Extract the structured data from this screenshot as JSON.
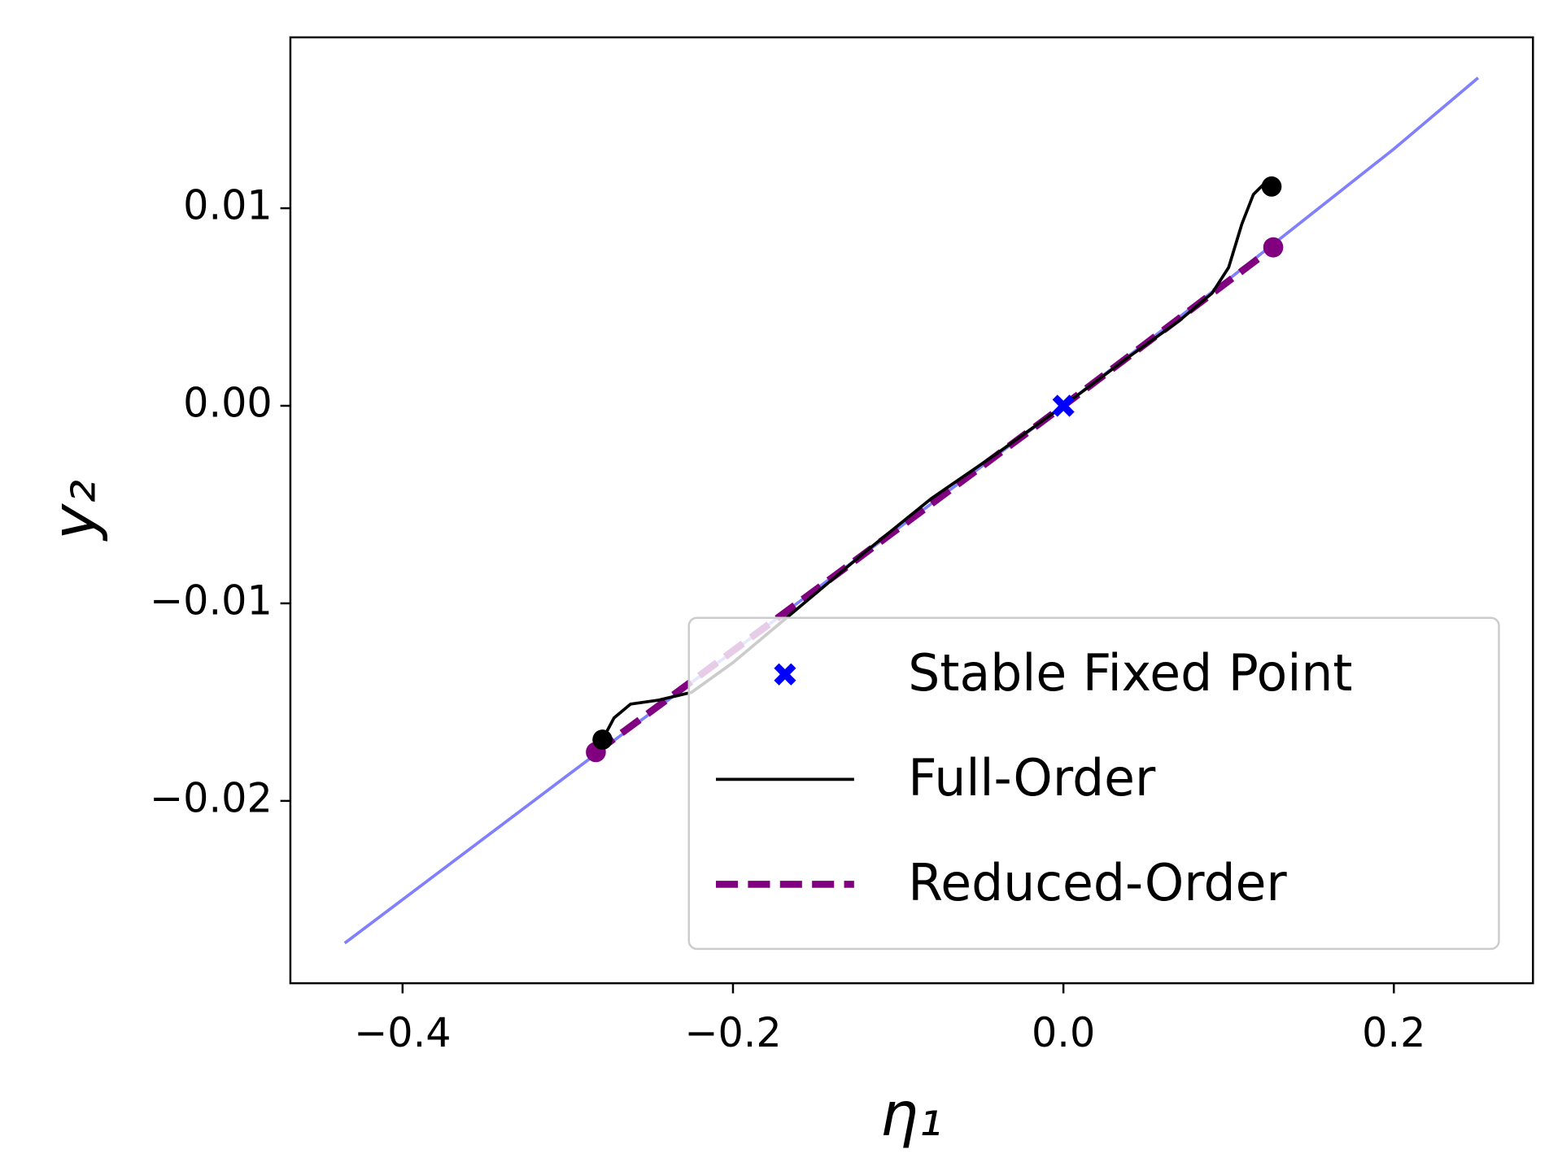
{
  "chart_data": {
    "type": "line",
    "xlabel": "η₁",
    "ylabel": "y₂",
    "xlim": [
      -0.4679,
      0.2842
    ],
    "ylim": [
      -0.02923,
      0.01865
    ],
    "xticks": [
      {
        "value": -0.4,
        "label": "−0.4"
      },
      {
        "value": -0.2,
        "label": "−0.2"
      },
      {
        "value": 0,
        "label": "0.0"
      },
      0.2
    ],
    "yticks": [
      {
        "value": -0.02,
        "label": "−0.02"
      },
      {
        "value": -0.01,
        "label": "−0.01"
      },
      {
        "value": 0,
        "label": "0.00"
      },
      0.01
    ],
    "grid": false,
    "legend": "lower right",
    "series": [
      {
        "color": "#8080ff",
        "style": "solid",
        "width": 3,
        "x": [
          -0.435,
          -0.3,
          -0.15,
          0,
          0.1,
          0.2,
          0.251
        ],
        "values": [
          -0.0272,
          -0.0187,
          -0.0093,
          0,
          0.0064,
          0.013,
          0.0166
        ]
      },
      {
        "name": "Reduced-Order",
        "color": "#800080",
        "style": "dashed",
        "width": 7,
        "end_markers": true,
        "x": [
          -0.283,
          -0.14,
          0,
          0.127
        ],
        "values": [
          -0.01753,
          -0.0087,
          0,
          0.00802
        ]
      },
      {
        "name": "Full-Order",
        "color": "#000000",
        "style": "solid",
        "width": 3,
        "end_markers": true,
        "x": [
          -0.279,
          -0.272,
          -0.262,
          -0.245,
          -0.225,
          -0.2,
          -0.16,
          -0.12,
          -0.08,
          -0.04,
          0,
          0.04,
          0.07,
          0.09,
          0.1,
          0.108,
          0.115,
          0.121,
          0.126
        ],
        "values": [
          -0.0169,
          -0.0158,
          -0.0151,
          -0.0149,
          -0.0145,
          -0.013,
          -0.0102,
          -0.0074,
          -0.0047,
          -0.0024,
          0,
          0.0025,
          0.0043,
          0.0057,
          0.007,
          0.0092,
          0.0107,
          0.0112,
          0.0111
        ]
      },
      {
        "name": "Stable Fixed Point",
        "color": "#0000ff",
        "style": "none",
        "marker": "X",
        "x": [
          0
        ],
        "values": [
          0
        ]
      }
    ]
  }
}
